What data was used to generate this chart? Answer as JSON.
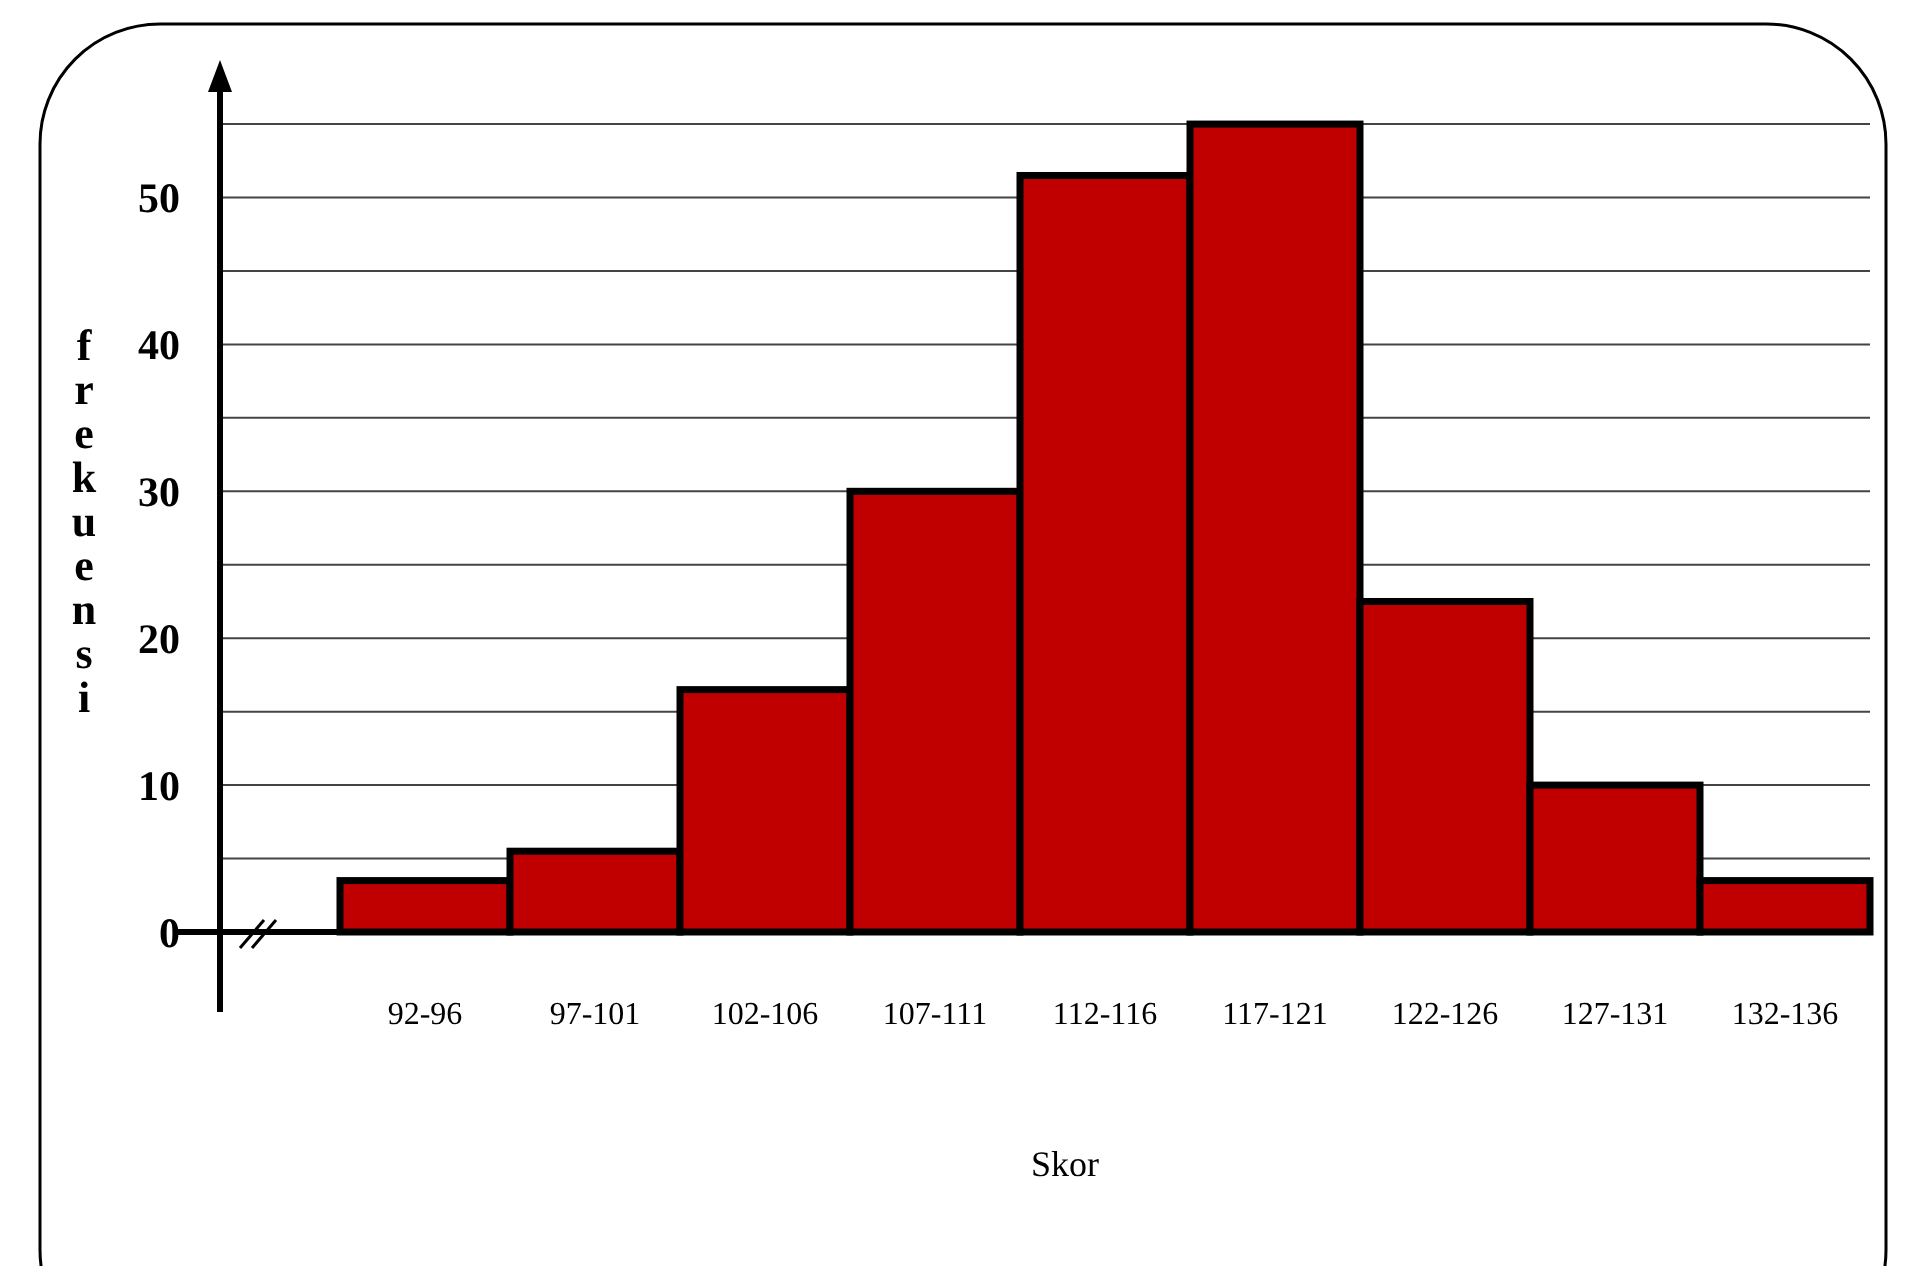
{
  "chart_data": {
    "type": "bar",
    "xlabel": "Skor",
    "ylabel": "frekuensi",
    "categories": [
      "92-96",
      "97-101",
      "102-106",
      "107-111",
      "112-116",
      "117-121",
      "122-126",
      "127-131",
      "132-136"
    ],
    "values": [
      3.5,
      5.5,
      16.5,
      30,
      51.5,
      55,
      22.5,
      10,
      3.5
    ],
    "color": "#c00000",
    "ylim": [
      0,
      58
    ],
    "yticks": [
      0,
      {
        "value": 5,
        "label": null
      },
      10,
      {
        "value": 15,
        "label": null
      },
      20,
      {
        "value": 25,
        "label": null
      },
      30,
      {
        "value": 35,
        "label": null
      },
      40,
      {
        "value": 45,
        "label": null
      },
      50,
      {
        "value": 55,
        "label": null
      }
    ],
    "grid": "y"
  }
}
